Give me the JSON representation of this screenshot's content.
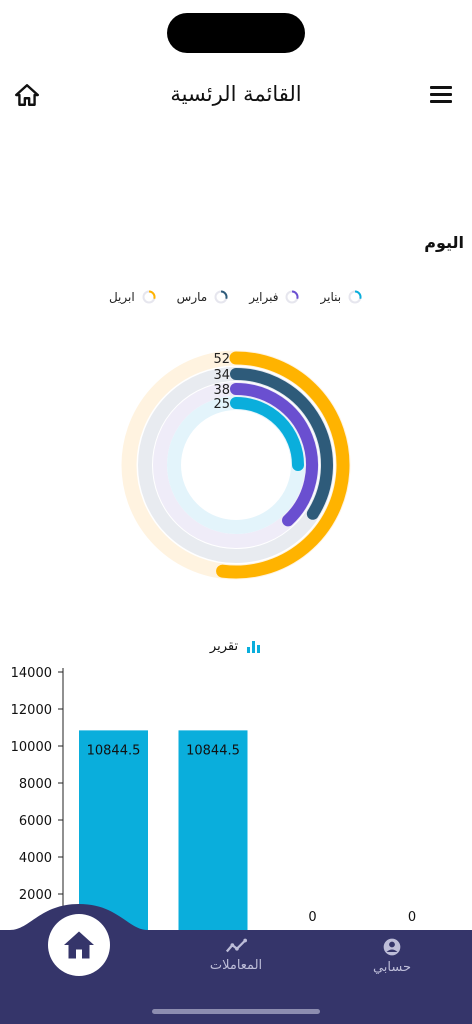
{
  "header": {
    "title": "القائمة الرئسية"
  },
  "section": {
    "today_label": "اليوم"
  },
  "legend": [
    {
      "label": "بناير",
      "color": "#0aaedc"
    },
    {
      "label": "فبراير",
      "color": "#6a4fd0"
    },
    {
      "label": "مارس",
      "color": "#2e5b7a"
    },
    {
      "label": "ابريل",
      "color": "#ffb300"
    }
  ],
  "report": {
    "title": "تقرير"
  },
  "chart_data": [
    {
      "type": "radial_bar",
      "series": [
        {
          "name": "ابريل",
          "value": 52,
          "color": "#ffb300",
          "track": "#fff3e0"
        },
        {
          "name": "مارس",
          "value": 34,
          "color": "#2e5b7a",
          "track": "#e8ebf0"
        },
        {
          "name": "فبراير",
          "value": 38,
          "color": "#6a4fd0",
          "track": "#efecf8"
        },
        {
          "name": "بناير",
          "value": 25,
          "color": "#0aaedc",
          "track": "#e3f4fb"
        }
      ],
      "max": 100
    },
    {
      "type": "bar",
      "categories": [
        "",
        "",
        "",
        ""
      ],
      "values": [
        10844.5,
        10844.5,
        0,
        0
      ],
      "yticks": [
        2000,
        4000,
        6000,
        8000,
        10000,
        12000,
        14000
      ],
      "ylim": [
        0,
        14000
      ],
      "bar_color": "#0aaedc"
    }
  ],
  "nav": {
    "transactions": "المعاملات",
    "account": "حسابي"
  }
}
